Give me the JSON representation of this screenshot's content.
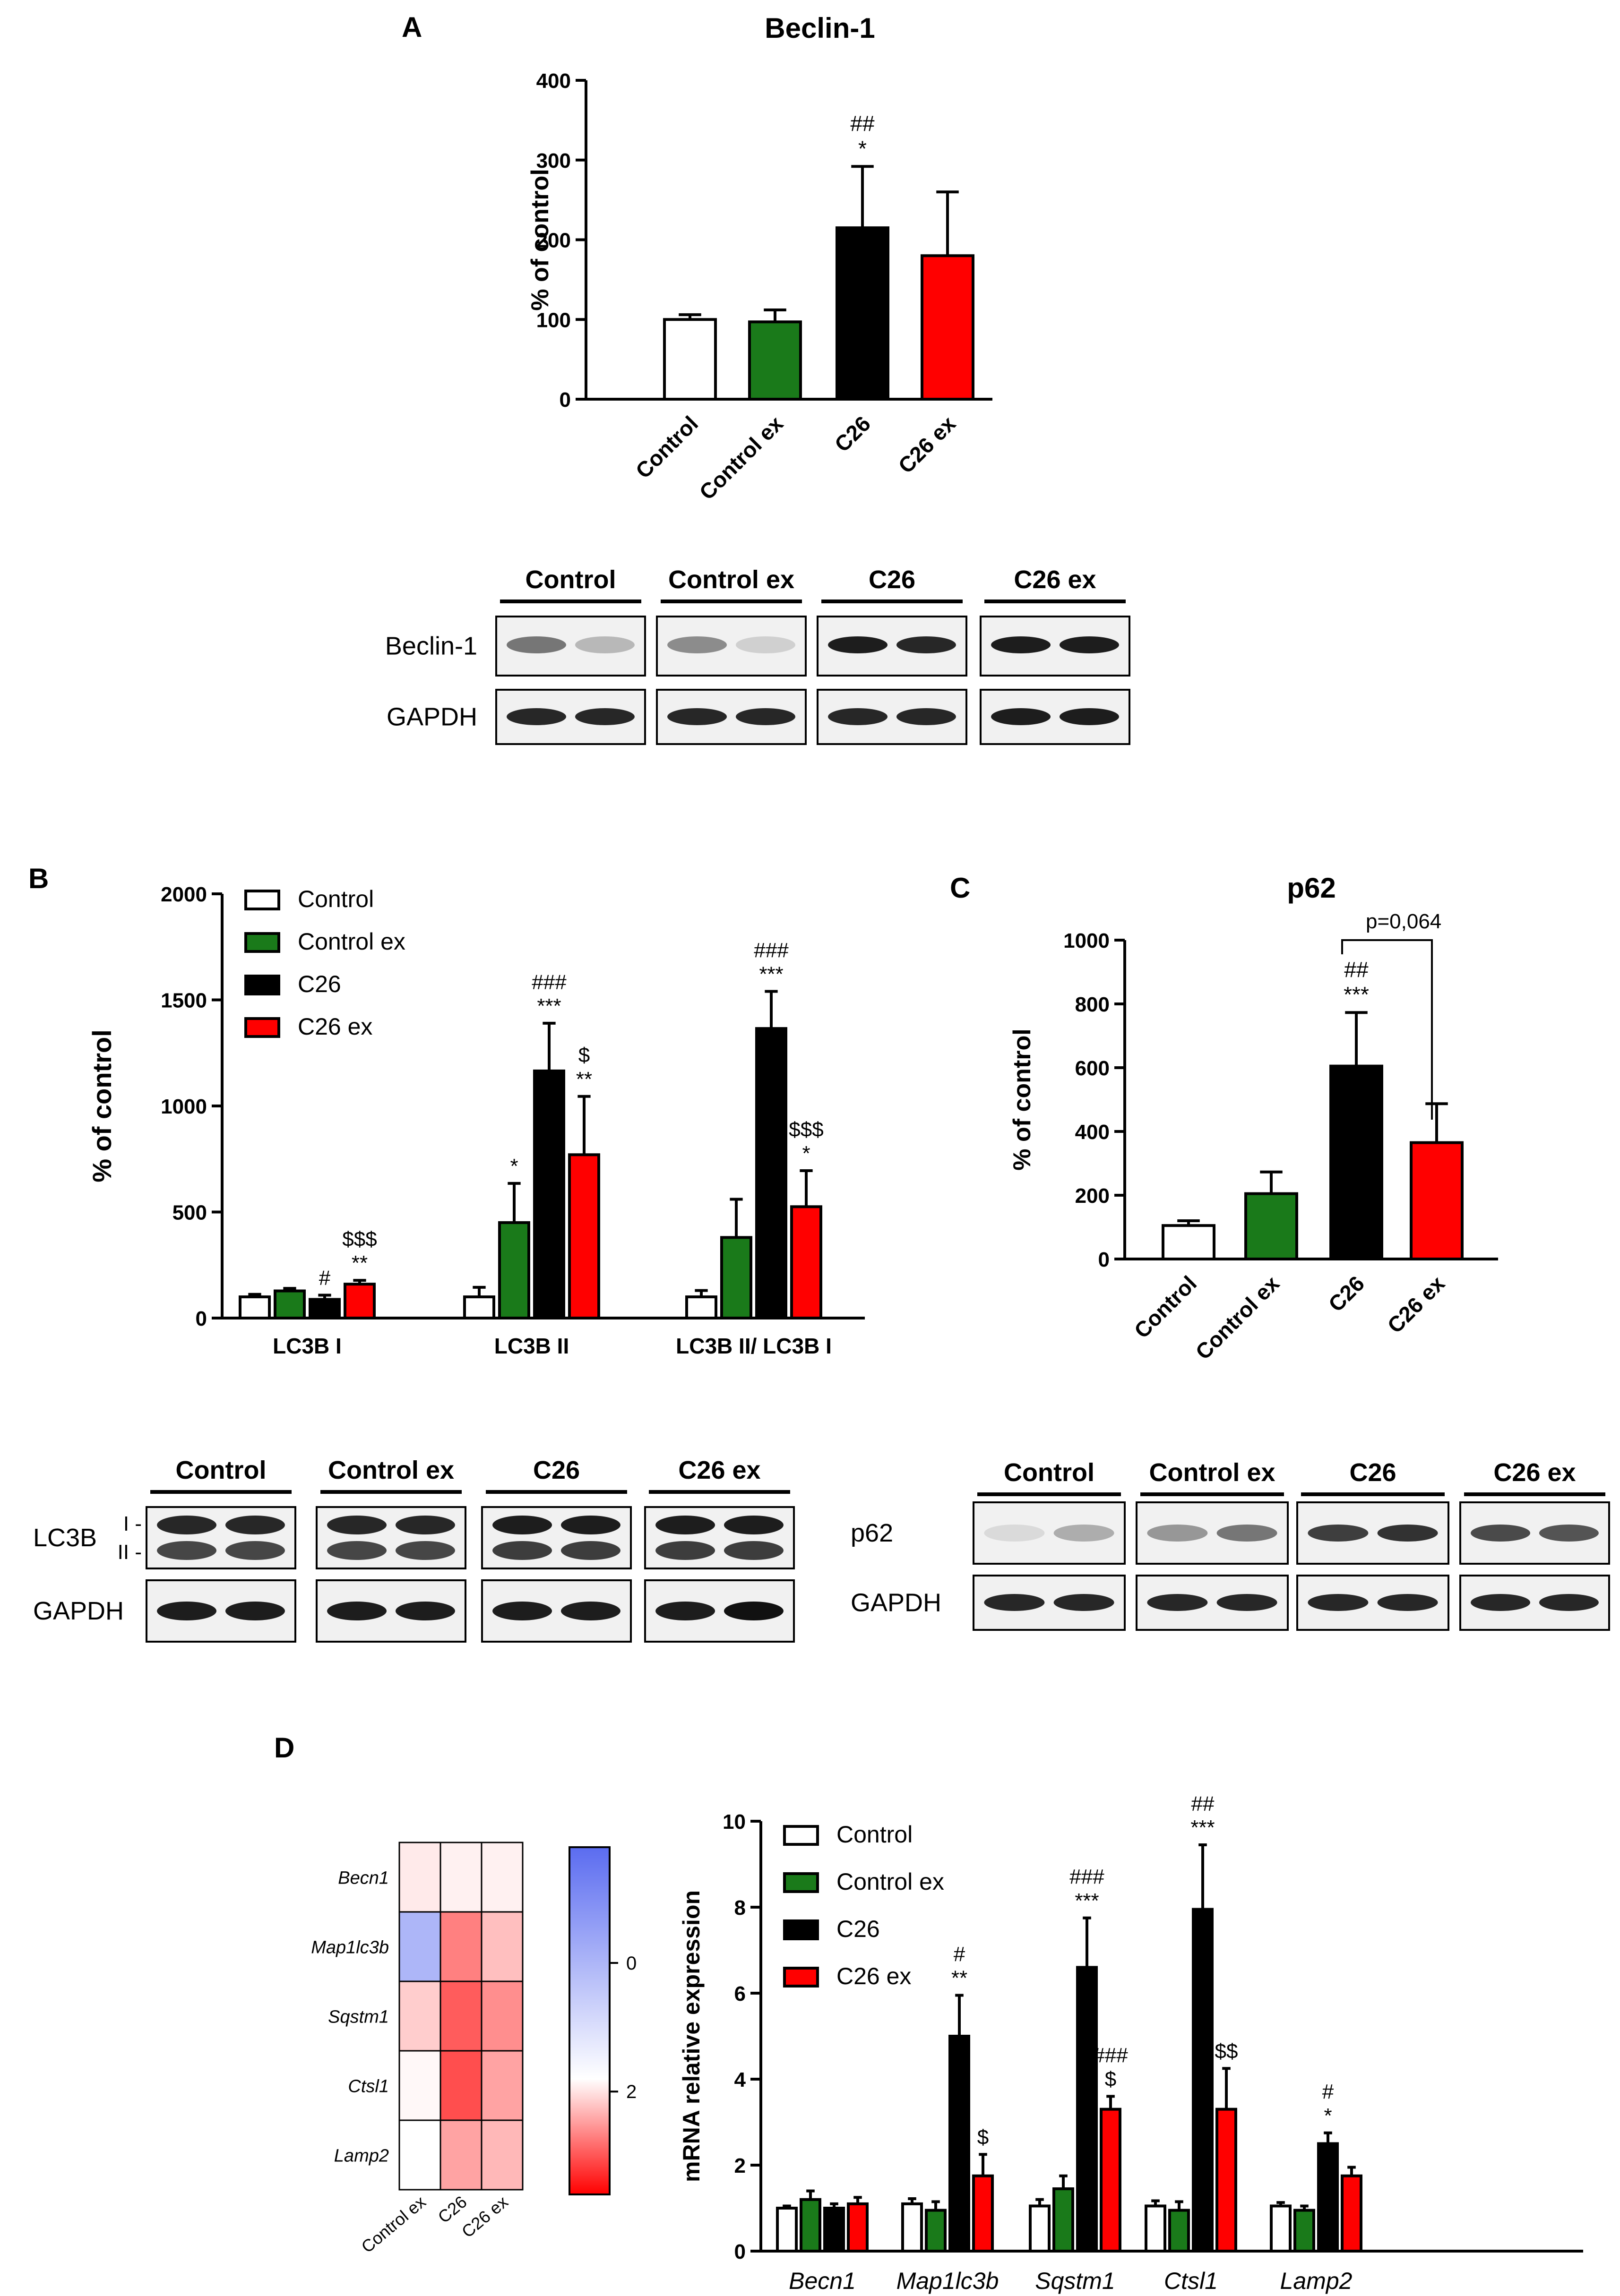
{
  "colors": {
    "control": "#ffffff",
    "control_ex": "#1a7a1a",
    "c26": "#000000",
    "c26_ex": "#ff0000",
    "heat_low": "#5b6cf0",
    "heat_mid": "#ffffff",
    "heat_high": "#ff0000"
  },
  "legend": [
    "Control",
    "Control ex",
    "C26",
    "C26 ex"
  ],
  "panel_a": {
    "letter": "A",
    "blot": {
      "groups": [
        "Control",
        "Control ex",
        "C26",
        "C26 ex"
      ],
      "rows": [
        "Beclin-1",
        "GAPDH"
      ]
    }
  },
  "panel_b": {
    "letter": "B",
    "blot": {
      "groups": [
        "Control",
        "Control ex",
        "C26",
        "C26 ex"
      ],
      "rows": [
        "LC3B",
        "GAPDH"
      ],
      "band_marks": [
        "I -",
        "II -"
      ]
    }
  },
  "panel_c": {
    "letter": "C",
    "bracket_label": "p=0,064",
    "blot": {
      "groups": [
        "Control",
        "Control ex",
        "C26",
        "C26 ex"
      ],
      "rows": [
        "p62",
        "GAPDH"
      ]
    }
  },
  "panel_d": {
    "letter": "D"
  },
  "chart_data": [
    {
      "id": "beclin",
      "type": "bar",
      "title": "Beclin-1",
      "ylabel": "% of control",
      "ylim": [
        0,
        400
      ],
      "yticks": [
        0,
        100,
        200,
        300,
        400
      ],
      "categories": [
        "Control",
        "Control ex",
        "C26",
        "C26 ex"
      ],
      "values": [
        100,
        97,
        215,
        180
      ],
      "errors": [
        6,
        15,
        77,
        80
      ],
      "annotations": [
        "",
        "",
        "##\n*",
        ""
      ]
    },
    {
      "id": "lc3b",
      "type": "bar",
      "title": "",
      "ylabel": "% of control",
      "ylim": [
        0,
        2000
      ],
      "yticks": [
        0,
        500,
        1000,
        1500,
        2000
      ],
      "categories": [
        "LC3B I",
        "LC3B II",
        "LC3B II/ LC3B I"
      ],
      "series": [
        {
          "name": "Control",
          "values": [
            100,
            100,
            100
          ],
          "errors": [
            12,
            45,
            30
          ]
        },
        {
          "name": "Control ex",
          "values": [
            128,
            450,
            380
          ],
          "errors": [
            12,
            185,
            180
          ]
        },
        {
          "name": "C26",
          "values": [
            88,
            1165,
            1365
          ],
          "errors": [
            20,
            225,
            175
          ]
        },
        {
          "name": "C26 ex",
          "values": [
            160,
            770,
            525
          ],
          "errors": [
            18,
            275,
            170
          ]
        }
      ],
      "annotations": [
        [
          "",
          "",
          "#",
          "$$$\n**"
        ],
        [
          "",
          "*",
          "###\n***",
          "$\n**"
        ],
        [
          "",
          "",
          "###\n***",
          "$$$\n*"
        ]
      ]
    },
    {
      "id": "p62",
      "type": "bar",
      "title": "p62",
      "ylabel": "% of control",
      "ylim": [
        0,
        1000
      ],
      "yticks": [
        0,
        200,
        400,
        600,
        800,
        1000
      ],
      "categories": [
        "Control",
        "Control ex",
        "C26",
        "C26 ex"
      ],
      "values": [
        105,
        205,
        605,
        365
      ],
      "errors": [
        15,
        68,
        168,
        122
      ],
      "annotations": [
        "",
        "",
        "##\n***",
        ""
      ]
    },
    {
      "id": "heatmap",
      "type": "heatmap",
      "rows": [
        "Becn1",
        "Map1lc3b",
        "Sqstm1",
        "Ctsl1",
        "Lamp2"
      ],
      "columns": [
        "Control ex",
        "C26",
        "C26 ex"
      ],
      "values": [
        [
          0.3,
          0.2,
          0.2
        ],
        [
          -0.9,
          1.8,
          0.9
        ],
        [
          0.7,
          2.3,
          1.6
        ],
        [
          0.1,
          2.5,
          1.3
        ],
        [
          0.0,
          1.3,
          1.0
        ]
      ],
      "colorbar_ticks": [
        0,
        2
      ],
      "colorbar_range": [
        -1.8,
        3.6
      ]
    },
    {
      "id": "mrna",
      "type": "bar",
      "title": "",
      "ylabel": "mRNA relative expression",
      "ylim": [
        0,
        10
      ],
      "yticks": [
        0,
        2,
        4,
        6,
        8,
        10
      ],
      "categories": [
        "Becn1",
        "Map1lc3b",
        "Sqstm1",
        "Ctsl1",
        "Lamp2"
      ],
      "series": [
        {
          "name": "Control",
          "values": [
            1.0,
            1.1,
            1.05,
            1.05,
            1.05
          ],
          "errors": [
            0.05,
            0.12,
            0.15,
            0.12,
            0.08
          ]
        },
        {
          "name": "Control ex",
          "values": [
            1.2,
            0.95,
            1.45,
            0.95,
            0.95
          ],
          "errors": [
            0.2,
            0.2,
            0.3,
            0.2,
            0.1
          ]
        },
        {
          "name": "C26",
          "values": [
            1.0,
            5.0,
            6.6,
            7.95,
            2.5
          ],
          "errors": [
            0.1,
            0.95,
            1.15,
            1.5,
            0.25
          ]
        },
        {
          "name": "C26 ex",
          "values": [
            1.1,
            1.75,
            3.3,
            3.3,
            1.75
          ],
          "errors": [
            0.15,
            0.5,
            0.3,
            0.95,
            0.2
          ]
        }
      ],
      "annotations": [
        [
          "",
          "",
          "",
          ""
        ],
        [
          "",
          "",
          "#\n**",
          "$"
        ],
        [
          "",
          "",
          "###\n***",
          "###\n$"
        ],
        [
          "",
          "",
          "##\n***",
          "$$"
        ],
        [
          "",
          "",
          "#\n*",
          ""
        ]
      ]
    }
  ]
}
